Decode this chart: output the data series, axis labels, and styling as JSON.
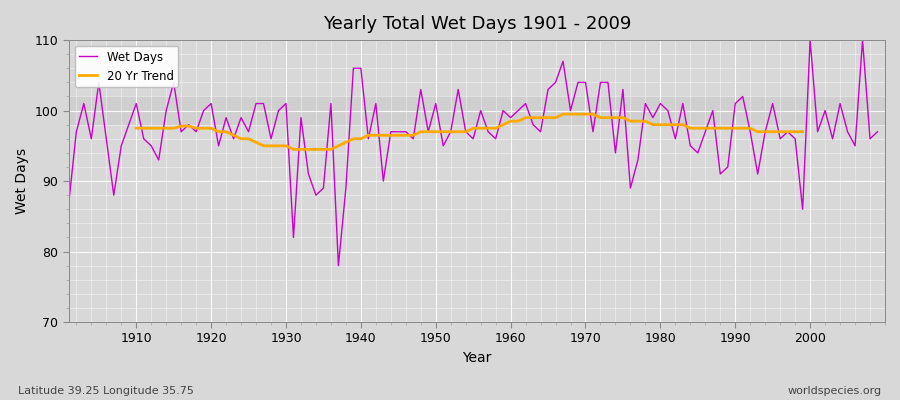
{
  "title": "Yearly Total Wet Days 1901 - 2009",
  "xlabel": "Year",
  "ylabel": "Wet Days",
  "bottom_left": "Latitude 39.25 Longitude 35.75",
  "bottom_right": "worldspecies.org",
  "ylim": [
    70,
    110
  ],
  "yticks": [
    70,
    80,
    90,
    100,
    110
  ],
  "xticks": [
    1910,
    1920,
    1930,
    1940,
    1950,
    1960,
    1970,
    1980,
    1990,
    2000
  ],
  "bg_color": "#e0e0e0",
  "plot_bg_color": "#dcdcdc",
  "wet_days_color": "#cc00cc",
  "trend_color": "#ffaa00",
  "wet_days_label": "Wet Days",
  "trend_label": "20 Yr Trend",
  "years": [
    1901,
    1902,
    1903,
    1904,
    1905,
    1906,
    1907,
    1908,
    1909,
    1910,
    1911,
    1912,
    1913,
    1914,
    1915,
    1916,
    1917,
    1918,
    1919,
    1920,
    1921,
    1922,
    1923,
    1924,
    1925,
    1926,
    1927,
    1928,
    1929,
    1930,
    1931,
    1932,
    1933,
    1934,
    1935,
    1936,
    1937,
    1938,
    1939,
    1940,
    1941,
    1942,
    1943,
    1944,
    1945,
    1946,
    1947,
    1948,
    1949,
    1950,
    1951,
    1952,
    1953,
    1954,
    1955,
    1956,
    1957,
    1958,
    1959,
    1960,
    1961,
    1962,
    1963,
    1964,
    1965,
    1966,
    1967,
    1968,
    1969,
    1970,
    1971,
    1972,
    1973,
    1974,
    1975,
    1976,
    1977,
    1978,
    1979,
    1980,
    1981,
    1982,
    1983,
    1984,
    1985,
    1986,
    1987,
    1988,
    1989,
    1990,
    1991,
    1992,
    1993,
    1994,
    1995,
    1996,
    1997,
    1998,
    1999,
    2000,
    2001,
    2002,
    2003,
    2004,
    2005,
    2006,
    2007,
    2008,
    2009
  ],
  "wet_days": [
    87,
    97,
    101,
    96,
    104,
    96,
    88,
    95,
    98,
    101,
    96,
    95,
    93,
    100,
    104,
    97,
    98,
    97,
    100,
    101,
    95,
    99,
    96,
    99,
    97,
    101,
    101,
    96,
    100,
    101,
    82,
    99,
    91,
    88,
    89,
    101,
    78,
    89,
    106,
    106,
    96,
    101,
    90,
    97,
    97,
    97,
    96,
    103,
    97,
    101,
    95,
    97,
    103,
    97,
    96,
    100,
    97,
    96,
    100,
    99,
    100,
    101,
    98,
    97,
    103,
    104,
    107,
    100,
    104,
    104,
    97,
    104,
    104,
    94,
    103,
    89,
    93,
    101,
    99,
    101,
    100,
    96,
    101,
    95,
    94,
    97,
    100,
    91,
    92,
    101,
    102,
    97,
    91,
    97,
    101,
    96,
    97,
    96,
    86,
    110,
    97,
    100,
    96,
    101,
    97,
    95,
    110,
    96,
    97
  ],
  "trend": [
    null,
    null,
    null,
    null,
    null,
    null,
    null,
    null,
    null,
    97.5,
    97.5,
    97.5,
    97.5,
    97.5,
    97.5,
    97.8,
    97.8,
    97.5,
    97.5,
    97.5,
    97,
    97,
    96.5,
    96,
    96,
    95.5,
    95,
    95,
    95,
    95,
    94.5,
    94.5,
    94.5,
    94.5,
    94.5,
    94.5,
    95,
    95.5,
    96,
    96,
    96.5,
    96.5,
    96.5,
    96.5,
    96.5,
    96.5,
    96.5,
    97,
    97,
    97,
    97,
    97,
    97,
    97,
    97.5,
    97.5,
    97.5,
    97.5,
    98,
    98.5,
    98.5,
    99,
    99,
    99,
    99,
    99,
    99.5,
    99.5,
    99.5,
    99.5,
    99.5,
    99,
    99,
    99,
    99,
    98.5,
    98.5,
    98.5,
    98,
    98,
    98,
    98,
    98,
    97.5,
    97.5,
    97.5,
    97.5,
    97.5,
    97.5,
    97.5,
    97.5,
    97.5,
    97,
    97,
    97,
    97,
    97,
    97,
    97,
    null
  ]
}
